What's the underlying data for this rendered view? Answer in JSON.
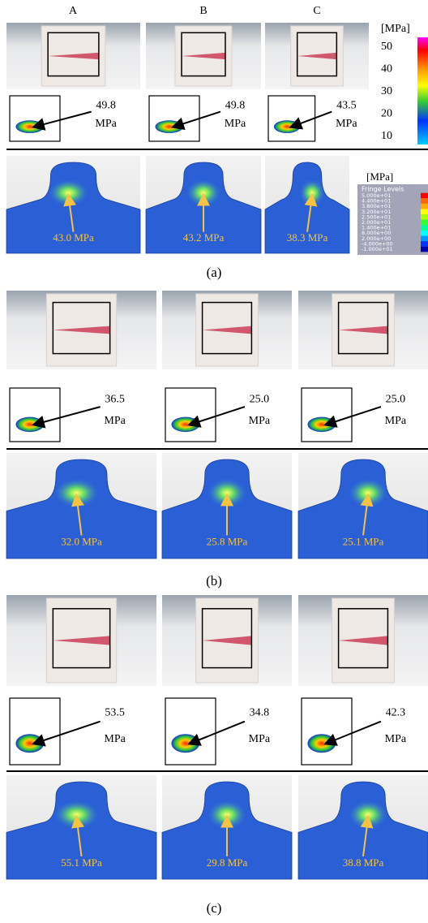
{
  "column_labels": [
    "A",
    "B",
    "C"
  ],
  "film_scale": {
    "unit": "[MPa]",
    "ticks": [
      "50",
      "40",
      "30",
      "20",
      "10"
    ]
  },
  "fe_legend": {
    "unit": "[MPa]",
    "title": "Fringe Levels",
    "levels": [
      "5.000e+01",
      "4.400e+01",
      "3.800e+01",
      "3.200e+01",
      "2.500e+01",
      "2.000e+01",
      "1.400e+01",
      "8.000e+00",
      "2.000e+00",
      "-4.000e+00",
      "-1.000e+01"
    ]
  },
  "panels": [
    {
      "label": "(a)",
      "film": [
        {
          "value": "49.8",
          "unit": "MPa"
        },
        {
          "value": "49.8",
          "unit": "MPa"
        },
        {
          "value": "43.5",
          "unit": "MPa"
        }
      ],
      "fe": [
        "43.0 MPa",
        "43.2 MPa",
        "38.3 MPa"
      ]
    },
    {
      "label": "(b)",
      "film": [
        {
          "value": "36.5",
          "unit": "MPa"
        },
        {
          "value": "25.0",
          "unit": "MPa"
        },
        {
          "value": "25.0",
          "unit": "MPa"
        }
      ],
      "fe": [
        "32.0 MPa",
        "25.8 MPa",
        "25.1 MPa"
      ]
    },
    {
      "label": "(c)",
      "film": [
        {
          "value": "53.5",
          "unit": "MPa"
        },
        {
          "value": "34.8",
          "unit": "MPa"
        },
        {
          "value": "42.3",
          "unit": "MPa"
        }
      ],
      "fe": [
        "55.1 MPa",
        "29.8 MPa",
        "38.8 MPa"
      ]
    }
  ]
}
